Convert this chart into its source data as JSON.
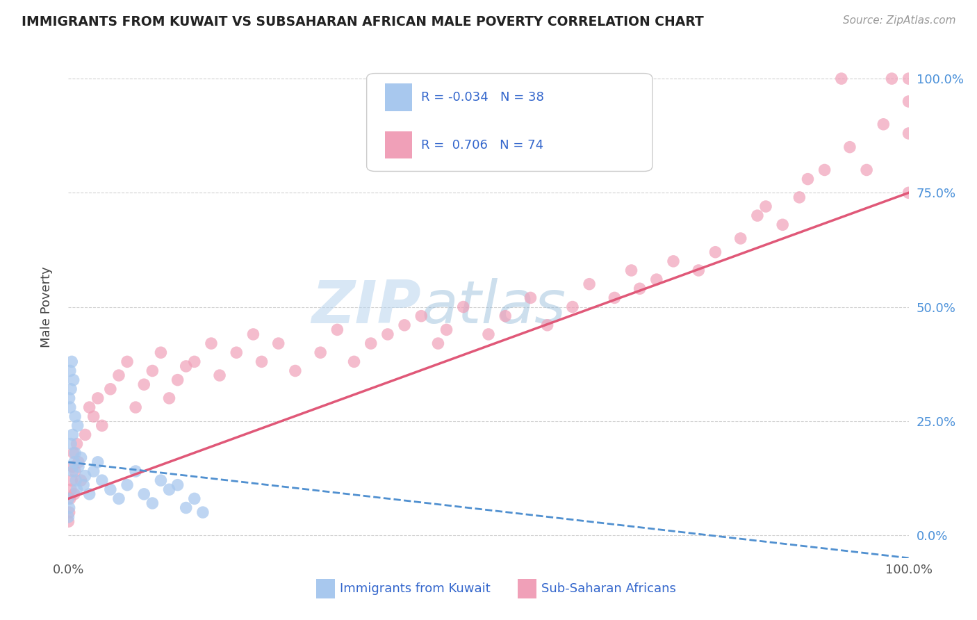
{
  "title": "IMMIGRANTS FROM KUWAIT VS SUBSAHARAN AFRICAN MALE POVERTY CORRELATION CHART",
  "source": "Source: ZipAtlas.com",
  "ylabel": "Male Poverty",
  "xlabel_legend1": "Immigrants from Kuwait",
  "xlabel_legend2": "Sub-Saharan Africans",
  "r1": -0.034,
  "n1": 38,
  "r2": 0.706,
  "n2": 74,
  "color_blue": "#A8C8EE",
  "color_pink": "#F0A0B8",
  "color_blue_line": "#5090D0",
  "color_pink_line": "#E05878",
  "watermark_zip": "ZIP",
  "watermark_atlas": "atlas",
  "blue_scatter_x": [
    0.0,
    0.0,
    0.1,
    0.1,
    0.2,
    0.2,
    0.3,
    0.3,
    0.4,
    0.5,
    0.5,
    0.6,
    0.7,
    0.8,
    0.8,
    0.9,
    1.0,
    1.1,
    1.2,
    1.5,
    1.8,
    2.0,
    2.5,
    3.0,
    3.5,
    4.0,
    5.0,
    6.0,
    7.0,
    8.0,
    9.0,
    10.0,
    11.0,
    12.0,
    13.0,
    14.0,
    15.0,
    16.0
  ],
  "blue_scatter_y": [
    4.0,
    8.0,
    6.0,
    30.0,
    28.0,
    36.0,
    32.0,
    20.0,
    38.0,
    14.0,
    22.0,
    34.0,
    16.0,
    18.0,
    26.0,
    12.0,
    10.0,
    24.0,
    15.0,
    17.0,
    11.0,
    13.0,
    9.0,
    14.0,
    16.0,
    12.0,
    10.0,
    8.0,
    11.0,
    14.0,
    9.0,
    7.0,
    12.0,
    10.0,
    11.0,
    6.0,
    8.0,
    5.0
  ],
  "pink_scatter_x": [
    0.0,
    0.1,
    0.2,
    0.3,
    0.4,
    0.5,
    0.6,
    0.7,
    0.8,
    1.0,
    1.2,
    1.5,
    2.0,
    2.5,
    3.0,
    3.5,
    4.0,
    5.0,
    6.0,
    7.0,
    8.0,
    9.0,
    10.0,
    11.0,
    12.0,
    13.0,
    14.0,
    15.0,
    17.0,
    18.0,
    20.0,
    22.0,
    23.0,
    25.0,
    27.0,
    30.0,
    32.0,
    34.0,
    36.0,
    38.0,
    40.0,
    42.0,
    44.0,
    45.0,
    47.0,
    50.0,
    52.0,
    55.0,
    57.0,
    60.0,
    62.0,
    65.0,
    67.0,
    68.0,
    70.0,
    72.0,
    75.0,
    77.0,
    80.0,
    82.0,
    83.0,
    85.0,
    87.0,
    88.0,
    90.0,
    92.0,
    93.0,
    95.0,
    97.0,
    98.0,
    100.0,
    100.0,
    100.0,
    100.0
  ],
  "pink_scatter_y": [
    3.0,
    5.0,
    8.0,
    10.0,
    12.0,
    15.0,
    18.0,
    9.0,
    14.0,
    20.0,
    16.0,
    12.0,
    22.0,
    28.0,
    26.0,
    30.0,
    24.0,
    32.0,
    35.0,
    38.0,
    28.0,
    33.0,
    36.0,
    40.0,
    30.0,
    34.0,
    37.0,
    38.0,
    42.0,
    35.0,
    40.0,
    44.0,
    38.0,
    42.0,
    36.0,
    40.0,
    45.0,
    38.0,
    42.0,
    44.0,
    46.0,
    48.0,
    42.0,
    45.0,
    50.0,
    44.0,
    48.0,
    52.0,
    46.0,
    50.0,
    55.0,
    52.0,
    58.0,
    54.0,
    56.0,
    60.0,
    58.0,
    62.0,
    65.0,
    70.0,
    72.0,
    68.0,
    74.0,
    78.0,
    80.0,
    100.0,
    85.0,
    80.0,
    90.0,
    100.0,
    100.0,
    95.0,
    88.0,
    75.0
  ],
  "xlim": [
    0.0,
    100.0
  ],
  "ylim": [
    -5.0,
    105.0
  ],
  "blue_line_x0": 0.0,
  "blue_line_y0": 16.0,
  "blue_line_x1": 100.0,
  "blue_line_y1": -5.0,
  "pink_line_x0": 0.0,
  "pink_line_y0": 8.0,
  "pink_line_x1": 100.0,
  "pink_line_y1": 75.0,
  "background_color": "#FFFFFF",
  "grid_color": "#CCCCCC",
  "ytick_positions": [
    0,
    25,
    50,
    75,
    100
  ],
  "ytick_labels": [
    "0.0%",
    "25.0%",
    "50.0%",
    "75.0%",
    "100.0%"
  ]
}
